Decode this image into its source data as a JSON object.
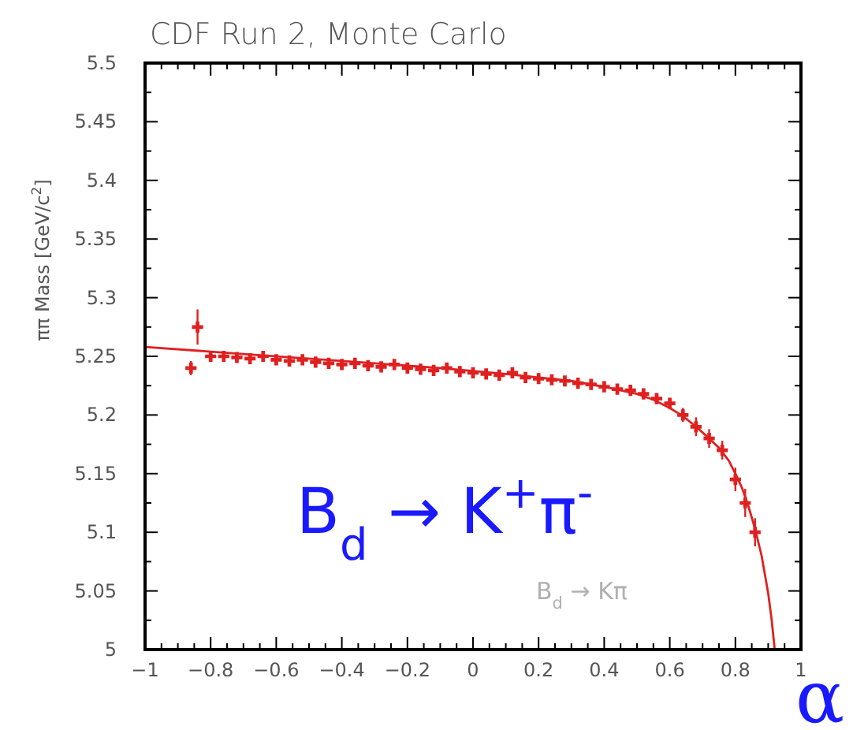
{
  "chart_data": {
    "type": "scatter",
    "title": "CDF Run 2, Monte Carlo",
    "xlabel": "α",
    "ylabel": "ππ Mass [GeV/c$^{2}$]",
    "annotations": [
      "B$_{d}$ → K$^{+}$π$^{-}$",
      "B$_{d}$ → Kπ"
    ],
    "xlim": [
      -1,
      1
    ],
    "ylim": [
      5,
      5.5
    ],
    "xticks": [
      -1,
      {
        "value": -0.95,
        "label": null
      },
      {
        "value": -0.9,
        "label": null
      },
      {
        "value": -0.85,
        "label": null
      },
      {
        "value": -0.8,
        "label": "−0.8"
      },
      {
        "value": -0.75,
        "label": null
      },
      {
        "value": -0.7,
        "label": null
      },
      {
        "value": -0.65,
        "label": null
      },
      {
        "value": -0.6,
        "label": "−0.6"
      },
      {
        "value": -0.55,
        "label": null
      },
      {
        "value": -0.5,
        "label": null
      },
      {
        "value": -0.45,
        "label": null
      },
      {
        "value": -0.4,
        "label": "−0.4"
      },
      {
        "value": -0.35,
        "label": null
      },
      {
        "value": -0.3,
        "label": null
      },
      {
        "value": -0.25,
        "label": null
      },
      {
        "value": -0.2,
        "label": "−0.2"
      },
      {
        "value": -0.15,
        "label": null
      },
      {
        "value": -0.1,
        "label": null
      },
      {
        "value": -0.05,
        "label": null
      },
      0,
      {
        "value": 0.05,
        "label": null
      },
      {
        "value": 0.1,
        "label": null
      },
      {
        "value": 0.15,
        "label": null
      },
      0.2,
      {
        "value": 0.25,
        "label": null
      },
      {
        "value": 0.3,
        "label": null
      },
      {
        "value": 0.35,
        "label": null
      },
      0.4,
      {
        "value": 0.45,
        "label": null
      },
      {
        "value": 0.5,
        "label": null
      },
      {
        "value": 0.55,
        "label": null
      },
      0.6,
      {
        "value": 0.65,
        "label": null
      },
      {
        "value": 0.7,
        "label": null
      },
      {
        "value": 0.75,
        "label": null
      },
      0.8,
      {
        "value": 0.85,
        "label": null
      },
      {
        "value": 0.9,
        "label": null
      },
      {
        "value": 0.95,
        "label": null
      },
      1
    ],
    "yticks": [
      5,
      {
        "value": 5.025,
        "label": null
      },
      5.05,
      {
        "value": 5.075,
        "label": null
      },
      5.1,
      {
        "value": 5.125,
        "label": null
      },
      5.15,
      {
        "value": 5.175,
        "label": null
      },
      5.2,
      {
        "value": 5.225,
        "label": null
      },
      5.25,
      {
        "value": 5.275,
        "label": null
      },
      5.3,
      {
        "value": 5.325,
        "label": null
      },
      5.35,
      {
        "value": 5.375,
        "label": null
      },
      5.4,
      {
        "value": 5.425,
        "label": null
      },
      5.45,
      {
        "value": 5.475,
        "label": null
      },
      5.5
    ],
    "grid": false,
    "marker": "cross",
    "series": [
      {
        "color": "#e02020",
        "x": [
          -0.86,
          -0.84,
          -0.8,
          -0.76,
          -0.72,
          -0.68,
          -0.64,
          -0.6,
          -0.56,
          -0.52,
          -0.48,
          -0.44,
          -0.4,
          -0.36,
          -0.32,
          -0.28,
          -0.24,
          -0.2,
          -0.16,
          -0.12,
          -0.08,
          -0.04,
          0,
          0.04,
          0.08,
          0.12,
          0.16,
          0.2,
          0.24,
          0.28,
          0.32,
          0.36,
          0.4,
          0.44,
          0.48,
          0.52,
          0.56,
          0.6,
          0.64,
          0.68,
          0.72,
          0.76,
          0.8,
          0.83,
          0.86
        ],
        "values": [
          5.24,
          5.275,
          5.25,
          5.25,
          5.249,
          5.248,
          5.25,
          5.247,
          5.246,
          5.247,
          5.245,
          5.244,
          5.243,
          5.244,
          5.242,
          5.241,
          5.243,
          5.24,
          5.239,
          5.238,
          5.24,
          5.237,
          5.236,
          5.235,
          5.234,
          5.236,
          5.232,
          5.231,
          5.23,
          5.229,
          5.227,
          5.226,
          5.224,
          5.222,
          5.221,
          5.218,
          5.214,
          5.21,
          5.2,
          5.19,
          5.18,
          5.17,
          5.145,
          5.125,
          5.1
        ],
        "errors": [
          0.006,
          0.015,
          0.004,
          0.004,
          0.004,
          0.004,
          0.004,
          0.004,
          0.004,
          0.004,
          0.004,
          0.004,
          0.004,
          0.004,
          0.004,
          0.004,
          0.004,
          0.004,
          0.004,
          0.004,
          0.004,
          0.004,
          0.004,
          0.004,
          0.004,
          0.004,
          0.004,
          0.004,
          0.004,
          0.004,
          0.004,
          0.004,
          0.004,
          0.004,
          0.004,
          0.004,
          0.004,
          0.004,
          0.006,
          0.008,
          0.008,
          0.008,
          0.01,
          0.012,
          0.012
        ]
      },
      {
        "type": "line",
        "color": "#e02020",
        "marker": "none",
        "x": [
          -1,
          -0.7,
          -0.4,
          -0.1,
          0.1,
          0.2,
          0.3,
          0.4,
          0.5,
          0.55,
          0.6,
          0.64,
          0.68,
          0.72,
          0.75,
          0.78,
          0.8,
          0.82,
          0.84,
          0.86,
          0.88,
          0.9,
          0.91,
          0.92
        ],
        "values": [
          5.258,
          5.252,
          5.246,
          5.24,
          5.235,
          5.232,
          5.229,
          5.224,
          5.218,
          5.213,
          5.206,
          5.199,
          5.19,
          5.18,
          5.172,
          5.161,
          5.15,
          5.138,
          5.122,
          5.103,
          5.08,
          5.048,
          5.027,
          5
        ]
      }
    ]
  }
}
